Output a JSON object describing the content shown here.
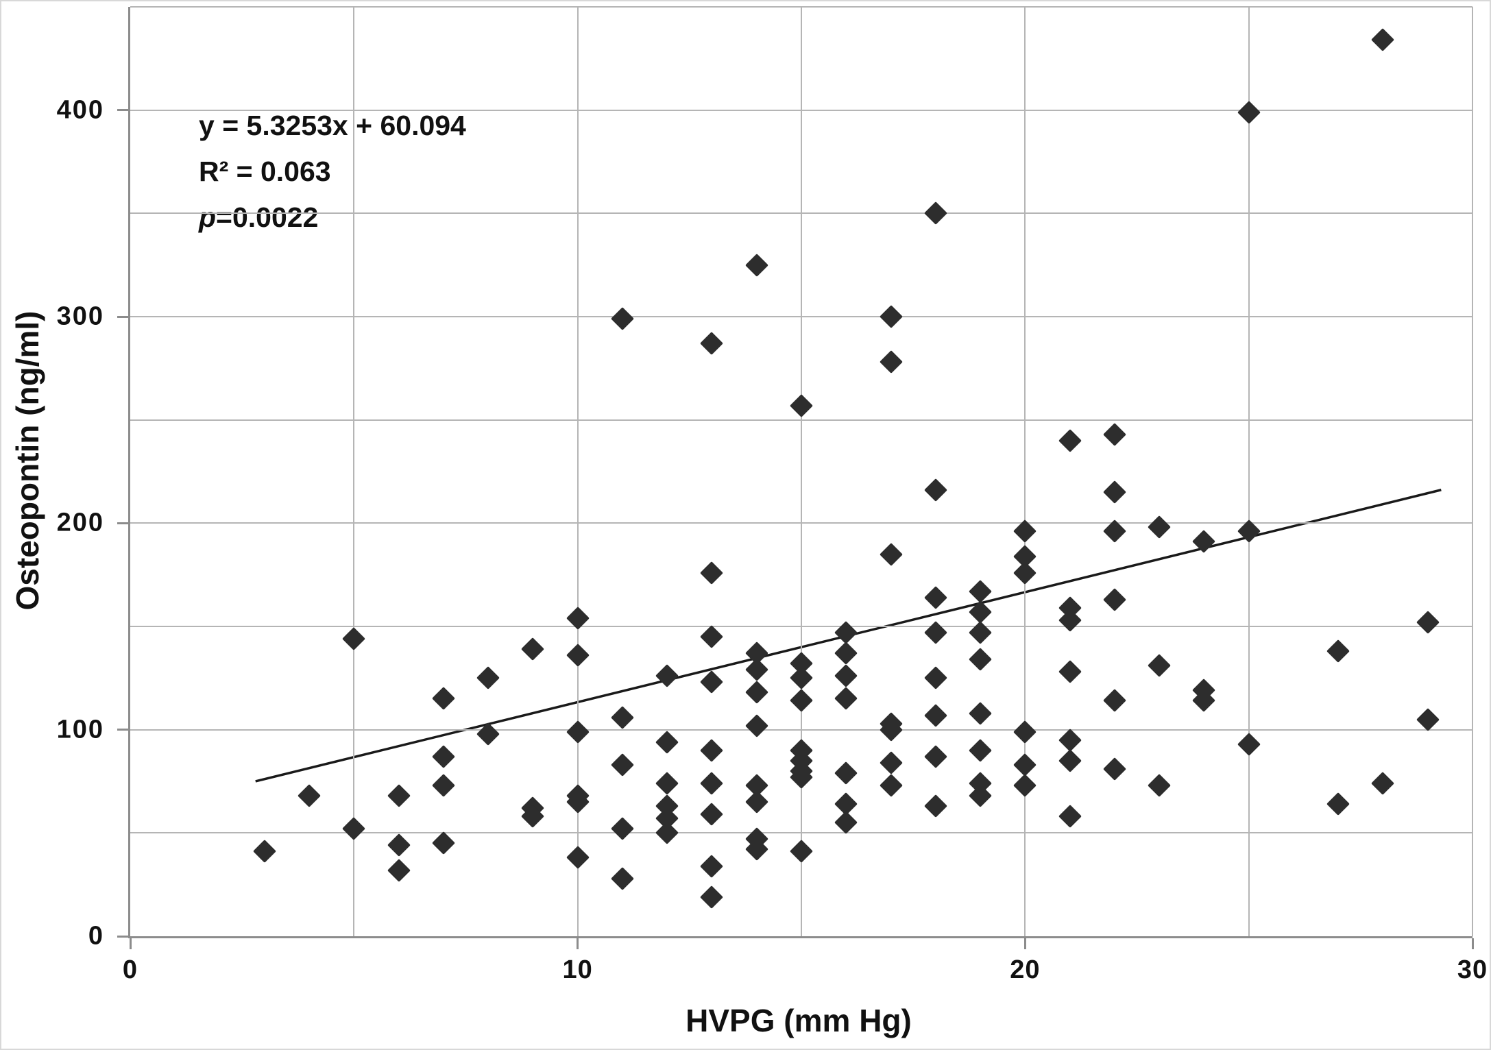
{
  "chart_data": {
    "type": "scatter",
    "title": "",
    "xlabel": "HVPG (mm Hg)",
    "ylabel": "Osteopontin (ng/ml)",
    "xlim": [
      0,
      30
    ],
    "ylim": [
      0,
      450
    ],
    "x_ticks": [
      0,
      10,
      20,
      30
    ],
    "y_ticks": [
      0,
      100,
      200,
      300,
      400
    ],
    "x_grid_step": 5,
    "y_grid_step": 50,
    "grid": true,
    "legend": "none",
    "marker": "diamond",
    "annotations": {
      "equation": "y = 5.3253x + 60.094",
      "r_squared": "R² = 0.063",
      "p_label": "p",
      "p_rest": "=0.0022"
    },
    "trendline": {
      "slope": 5.3253,
      "intercept": 60.094,
      "x_start": 2.8,
      "x_end": 29.3
    },
    "points": [
      [
        3,
        41
      ],
      [
        4,
        68
      ],
      [
        5,
        144
      ],
      [
        5,
        52
      ],
      [
        6,
        68
      ],
      [
        6,
        44
      ],
      [
        6,
        32
      ],
      [
        7,
        115
      ],
      [
        7,
        87
      ],
      [
        7,
        73
      ],
      [
        7,
        45
      ],
      [
        8,
        125
      ],
      [
        8,
        98
      ],
      [
        9,
        139
      ],
      [
        9,
        62
      ],
      [
        9,
        58
      ],
      [
        10,
        154
      ],
      [
        10,
        136
      ],
      [
        10,
        99
      ],
      [
        10,
        68
      ],
      [
        10,
        65
      ],
      [
        10,
        38
      ],
      [
        11,
        299
      ],
      [
        11,
        106
      ],
      [
        11,
        83
      ],
      [
        11,
        52
      ],
      [
        11,
        28
      ],
      [
        12,
        126
      ],
      [
        12,
        94
      ],
      [
        12,
        74
      ],
      [
        12,
        63
      ],
      [
        12,
        57
      ],
      [
        12,
        50
      ],
      [
        13,
        287
      ],
      [
        13,
        176
      ],
      [
        13,
        145
      ],
      [
        13,
        123
      ],
      [
        13,
        90
      ],
      [
        13,
        74
      ],
      [
        13,
        59
      ],
      [
        13,
        34
      ],
      [
        13,
        19
      ],
      [
        14,
        325
      ],
      [
        14,
        137
      ],
      [
        14,
        129
      ],
      [
        14,
        118
      ],
      [
        14,
        102
      ],
      [
        14,
        73
      ],
      [
        14,
        65
      ],
      [
        14,
        47
      ],
      [
        14,
        42
      ],
      [
        15,
        257
      ],
      [
        15,
        132
      ],
      [
        15,
        125
      ],
      [
        15,
        114
      ],
      [
        15,
        90
      ],
      [
        15,
        85
      ],
      [
        15,
        80
      ],
      [
        15,
        77
      ],
      [
        15,
        41
      ],
      [
        16,
        147
      ],
      [
        16,
        137
      ],
      [
        16,
        126
      ],
      [
        16,
        115
      ],
      [
        16,
        79
      ],
      [
        16,
        64
      ],
      [
        16,
        55
      ],
      [
        17,
        300
      ],
      [
        17,
        278
      ],
      [
        17,
        185
      ],
      [
        17,
        103
      ],
      [
        17,
        100
      ],
      [
        17,
        84
      ],
      [
        17,
        73
      ],
      [
        18,
        350
      ],
      [
        18,
        216
      ],
      [
        18,
        164
      ],
      [
        18,
        147
      ],
      [
        18,
        125
      ],
      [
        18,
        107
      ],
      [
        18,
        87
      ],
      [
        18,
        63
      ],
      [
        19,
        167
      ],
      [
        19,
        157
      ],
      [
        19,
        147
      ],
      [
        19,
        134
      ],
      [
        19,
        108
      ],
      [
        19,
        90
      ],
      [
        19,
        74
      ],
      [
        19,
        68
      ],
      [
        20,
        196
      ],
      [
        20,
        184
      ],
      [
        20,
        176
      ],
      [
        20,
        99
      ],
      [
        20,
        83
      ],
      [
        20,
        73
      ],
      [
        21,
        240
      ],
      [
        21,
        159
      ],
      [
        21,
        153
      ],
      [
        21,
        128
      ],
      [
        21,
        95
      ],
      [
        21,
        85
      ],
      [
        21,
        58
      ],
      [
        22,
        243
      ],
      [
        22,
        215
      ],
      [
        22,
        196
      ],
      [
        22,
        163
      ],
      [
        22,
        114
      ],
      [
        22,
        81
      ],
      [
        23,
        198
      ],
      [
        23,
        131
      ],
      [
        23,
        73
      ],
      [
        24,
        191
      ],
      [
        24,
        119
      ],
      [
        24,
        114
      ],
      [
        25,
        399
      ],
      [
        25,
        196
      ],
      [
        25,
        93
      ],
      [
        27,
        138
      ],
      [
        27,
        64
      ],
      [
        28,
        434
      ],
      [
        28,
        74
      ],
      [
        29,
        152
      ],
      [
        29,
        105
      ]
    ],
    "colors": {
      "marker": "#2d2d2d",
      "trendline": "#1a1a1a",
      "gridline": "#b5b5b5",
      "axis_line": "#8c8c8c",
      "text": "#111111"
    }
  }
}
